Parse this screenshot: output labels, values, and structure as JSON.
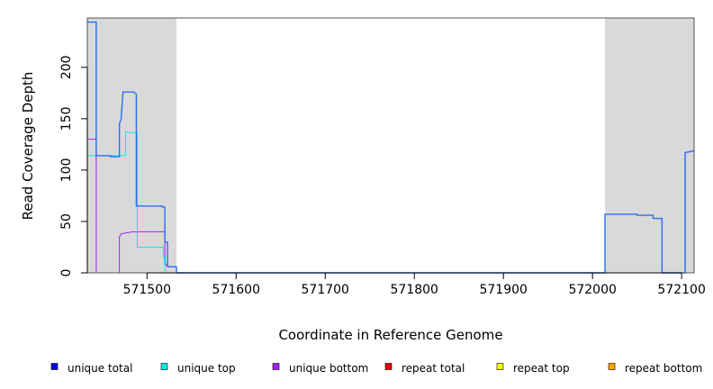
{
  "chart_data": {
    "type": "line",
    "title": "",
    "xlabel": "Coordinate in Reference Genome",
    "ylabel": "Read Coverage Depth",
    "xlim": [
      571433,
      572114
    ],
    "ylim": [
      0,
      248
    ],
    "x_ticks": [
      571500,
      571600,
      571700,
      571800,
      571900,
      572000,
      572100
    ],
    "y_ticks": [
      0,
      50,
      100,
      150,
      200
    ],
    "shaded_regions": [
      [
        571433,
        571533
      ],
      [
        572014,
        572114
      ]
    ],
    "shade_color": "#d9d9d9",
    "legend_position": "bottom",
    "series": [
      {
        "name": "unique total",
        "color": "#0000ee",
        "line_color": "#2a6ef2",
        "points": [
          [
            571433,
            244
          ],
          [
            571443,
            244
          ],
          [
            571443,
            114
          ],
          [
            571459,
            114
          ],
          [
            571459,
            113
          ],
          [
            571469,
            113
          ],
          [
            571469,
            145
          ],
          [
            571471,
            150
          ],
          [
            571473,
            176
          ],
          [
            571480,
            176
          ],
          [
            571485,
            176
          ],
          [
            571488,
            174
          ],
          [
            571488,
            65
          ],
          [
            571517,
            65
          ],
          [
            571517,
            64
          ],
          [
            571520,
            64
          ],
          [
            571520,
            30
          ],
          [
            571523,
            30
          ],
          [
            571523,
            6
          ],
          [
            571533,
            6
          ],
          [
            571533,
            0
          ],
          [
            572014,
            0
          ],
          [
            572014,
            57
          ],
          [
            572050,
            57
          ],
          [
            572050,
            56
          ],
          [
            572068,
            56
          ],
          [
            572068,
            53
          ],
          [
            572078,
            53
          ],
          [
            572078,
            0
          ],
          [
            572104,
            0
          ],
          [
            572104,
            117
          ],
          [
            572110,
            118
          ],
          [
            572114,
            119
          ]
        ]
      },
      {
        "name": "unique top",
        "color": "#00eeee",
        "points": [
          [
            571433,
            114
          ],
          [
            571476,
            114
          ],
          [
            571476,
            137
          ],
          [
            571489,
            136
          ],
          [
            571489,
            25
          ],
          [
            571518,
            25
          ],
          [
            571518,
            23
          ],
          [
            571521,
            0
          ],
          [
            572114,
            0
          ]
        ]
      },
      {
        "name": "unique bottom",
        "color": "#a020f0",
        "points": [
          [
            571433,
            130
          ],
          [
            571443,
            130
          ],
          [
            571443,
            0
          ],
          [
            571469,
            0
          ],
          [
            571469,
            35
          ],
          [
            571471,
            38
          ],
          [
            571484,
            40
          ],
          [
            571520,
            40
          ],
          [
            571520,
            10
          ],
          [
            571523,
            6
          ],
          [
            571533,
            6
          ],
          [
            571533,
            0
          ],
          [
            572104,
            0
          ],
          [
            572104,
            117
          ],
          [
            572114,
            119
          ]
        ]
      },
      {
        "name": "repeat total",
        "color": "#ee0000",
        "points": [
          [
            571433,
            0
          ],
          [
            572114,
            0
          ]
        ]
      },
      {
        "name": "repeat top",
        "color": "#ffff00",
        "points": [
          [
            571433,
            0
          ],
          [
            571533,
            0
          ]
        ]
      },
      {
        "name": "repeat bottom",
        "color": "#ffa500",
        "points": [
          [
            571433,
            0
          ],
          [
            571533,
            0
          ]
        ]
      }
    ]
  }
}
